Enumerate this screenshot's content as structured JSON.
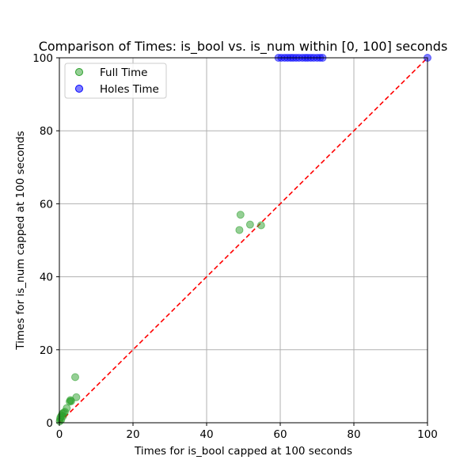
{
  "chart_data": {
    "type": "scatter",
    "title": "Comparison of Times: is_bool vs. is_num within [0, 100] seconds",
    "xlabel": "Times for is_bool capped at 100 seconds",
    "ylabel": "Times for is_num capped at 100 seconds",
    "xlim": [
      0,
      100
    ],
    "ylim": [
      0,
      100
    ],
    "xticks": [
      "0",
      "20",
      "40",
      "60",
      "80",
      "100"
    ],
    "yticks": [
      "0",
      "20",
      "40",
      "60",
      "80",
      "100"
    ],
    "grid": true,
    "legend_position": "top-left",
    "reference_line": {
      "from": [
        0,
        0
      ],
      "to": [
        100,
        100
      ],
      "color": "#ff0000",
      "style": "dashed"
    },
    "series": [
      {
        "name": "Full Time",
        "color": "#2ca02c",
        "x": [
          0.1,
          0.2,
          0.3,
          0.5,
          0.6,
          0.8,
          1.0,
          1.2,
          1.5,
          2.0,
          2.8,
          3.0,
          3.2,
          4.3,
          4.6,
          48.9,
          49.2,
          51.8,
          54.8
        ],
        "y": [
          0.4,
          1.0,
          1.5,
          0.8,
          2.0,
          2.5,
          1.8,
          2.8,
          3.0,
          4.0,
          5.8,
          6.2,
          5.9,
          12.5,
          7.0,
          52.8,
          57.0,
          54.3,
          54.1
        ]
      },
      {
        "name": "Holes Time",
        "color": "#0000ff",
        "x": [
          59.5,
          60.3,
          61.2,
          62.0,
          62.8,
          63.5,
          64.3,
          65.1,
          66.0,
          66.8,
          67.5,
          68.3,
          69.1,
          70.0,
          70.8,
          71.5,
          100.0
        ],
        "y": [
          100,
          100,
          100,
          100,
          100,
          100,
          100,
          100,
          100,
          100,
          100,
          100,
          100,
          100,
          100,
          100,
          100
        ]
      }
    ]
  }
}
